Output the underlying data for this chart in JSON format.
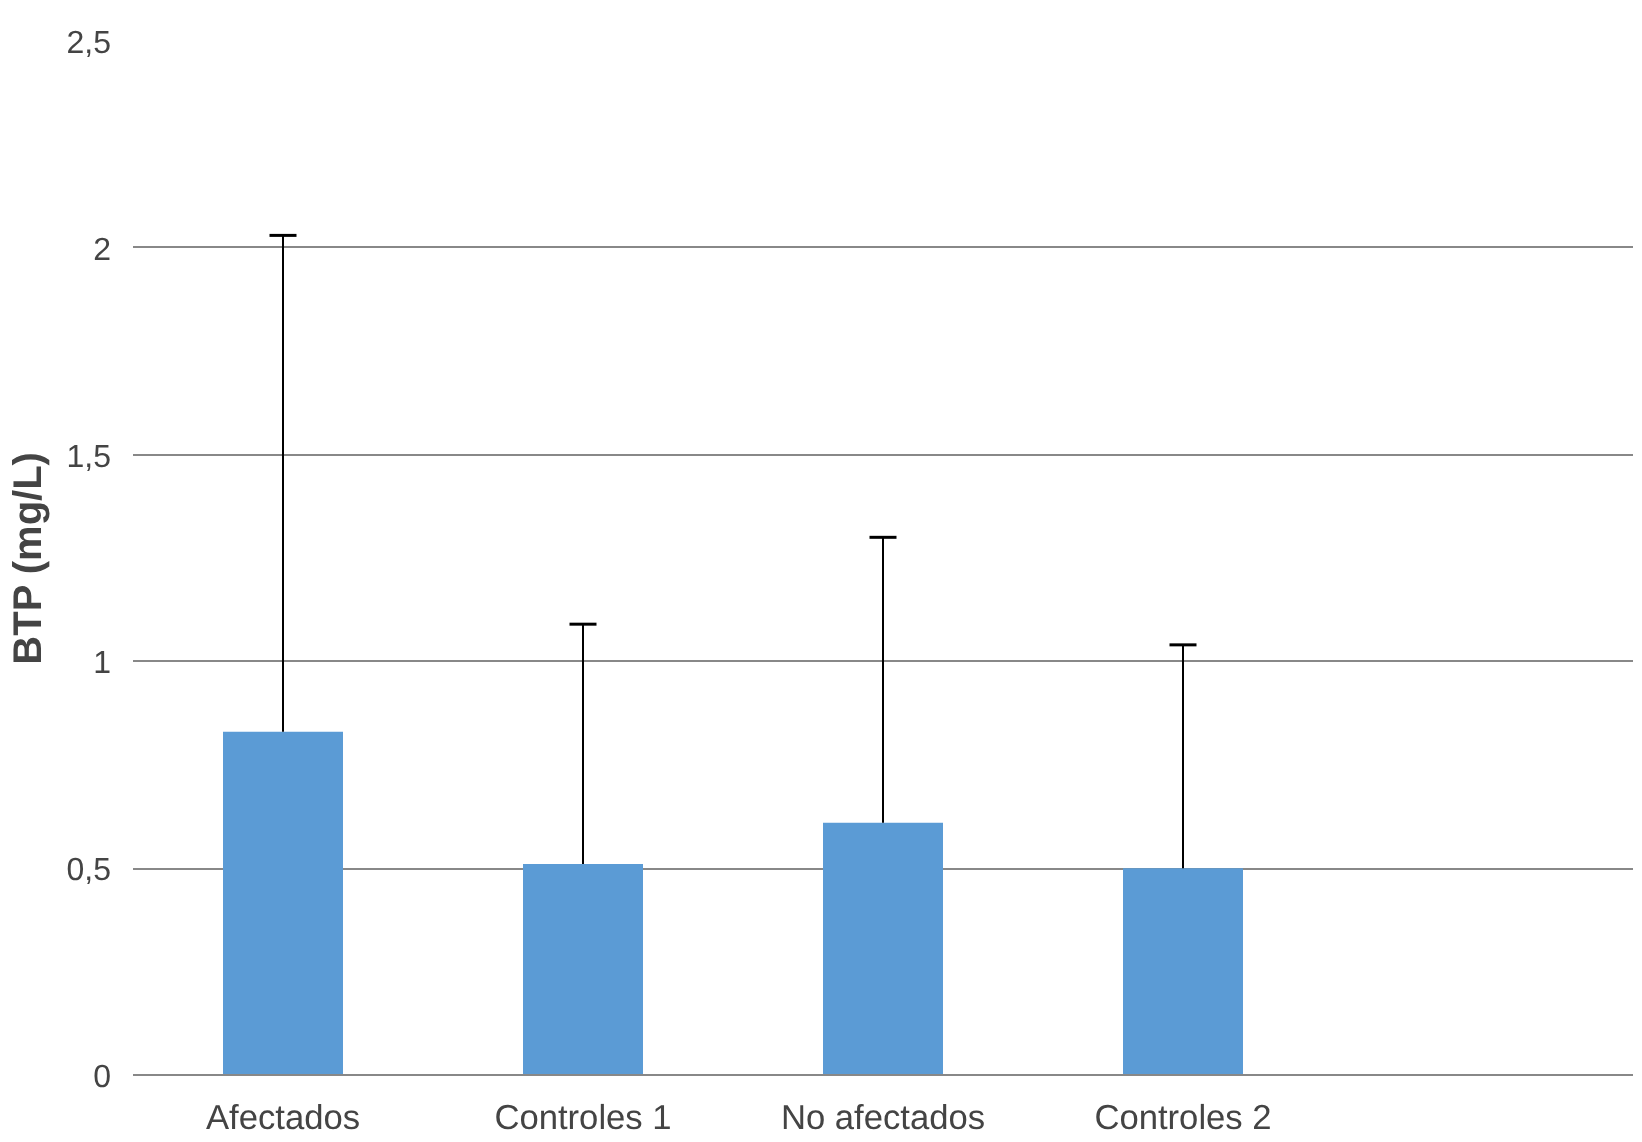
{
  "chart_data": {
    "type": "bar",
    "ylabel": "BTP (mg/L)",
    "categories": [
      "Afectados",
      "Controles 1",
      "No afectados",
      "Controles 2",
      null
    ],
    "values": [
      0.83,
      0.51,
      0.61,
      0.5,
      null
    ],
    "errors": [
      [
        0.83,
        2.03
      ],
      [
        0.51,
        1.09
      ],
      [
        0.61,
        1.3
      ],
      [
        0.5,
        1.04
      ],
      null
    ],
    "color": "#5b9bd5",
    "ylim": [
      0,
      2.5
    ],
    "yticks": [
      {
        "value": 0,
        "label": "0"
      },
      {
        "value": 0.5,
        "label": "0,5"
      },
      {
        "value": 1,
        "label": "1"
      },
      {
        "value": 1.5,
        "label": "1,5"
      },
      {
        "value": 2,
        "label": "2"
      },
      {
        "value": 2.5,
        "label": "2,5"
      }
    ],
    "grid": "y"
  }
}
